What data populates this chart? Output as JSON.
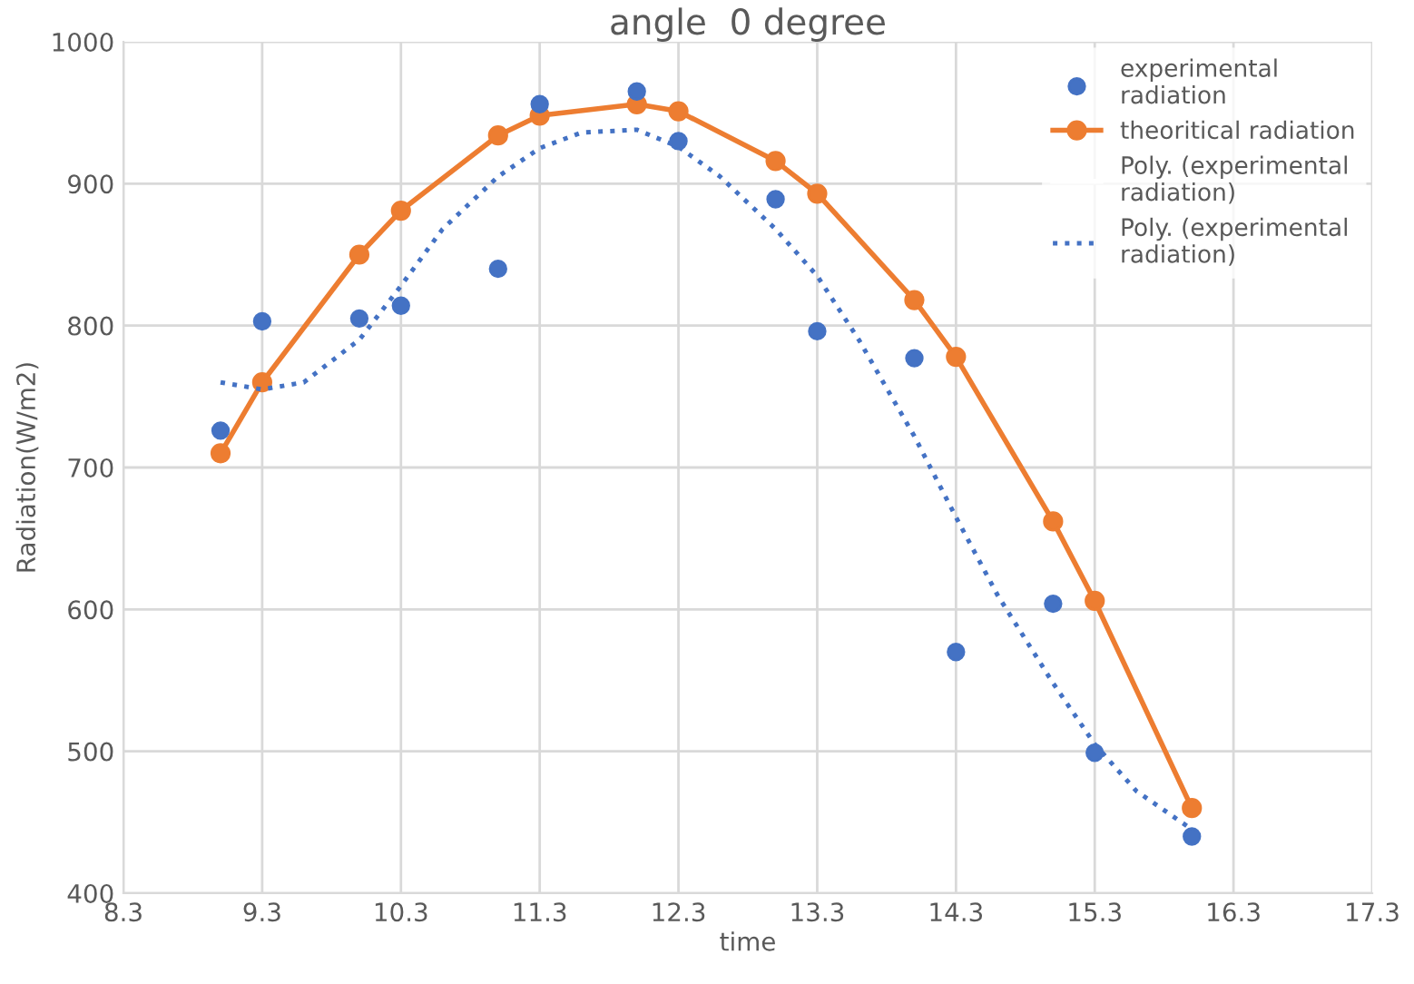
{
  "chart_data": {
    "type": "scatter",
    "title": "angle  0 degree",
    "xlabel": "time",
    "ylabel": "Radiation(W/m2)",
    "xlim": [
      8.3,
      17.3
    ],
    "xticks": [
      8.3,
      9.3,
      10.3,
      11.3,
      12.3,
      13.3,
      14.3,
      15.3,
      16.3,
      17.3
    ],
    "ylim": [
      400,
      1000
    ],
    "yticks": [
      400,
      500,
      600,
      700,
      800,
      900,
      1000
    ],
    "grid": true,
    "legend": "top right",
    "series": [
      {
        "name": "experimental radiation",
        "color": "#4472c4",
        "marker": "circle",
        "x": [
          9.0,
          9.3,
          10.0,
          10.3,
          11.0,
          11.3,
          12.0,
          12.3,
          13.0,
          13.3,
          14.0,
          14.3,
          15.0,
          15.3,
          16.0
        ],
        "values": [
          726,
          803,
          805,
          814,
          840,
          956,
          965,
          930,
          889,
          796,
          777,
          570,
          604,
          499,
          440
        ]
      },
      {
        "name": "theoritical radiation",
        "type": "line",
        "color": "#ed7d31",
        "marker": "circle",
        "line_style": "solid",
        "x": [
          9.0,
          9.3,
          10.0,
          10.3,
          11.0,
          11.3,
          12.0,
          12.3,
          13.0,
          13.3,
          14.0,
          14.3,
          15.0,
          15.3,
          16.0
        ],
        "values": [
          710,
          760,
          850,
          881,
          934,
          948,
          956,
          951,
          916,
          893,
          818,
          778,
          662,
          606,
          460
        ]
      },
      {
        "name": "Poly. (experimental radiation)",
        "type": "line",
        "color": "#ffffff",
        "marker": "none",
        "line_style": "solid"
      },
      {
        "name": "Poly. (experimental radiation)",
        "type": "line",
        "color": "#4472c4",
        "marker": "none",
        "line_style": "dotted",
        "x": [
          9.0,
          9.3,
          9.6,
          10.0,
          10.3,
          10.6,
          11.0,
          11.3,
          11.6,
          12.0,
          12.3,
          12.6,
          13.0,
          13.3,
          13.6,
          14.0,
          14.3,
          14.6,
          15.0,
          15.3,
          15.6,
          16.0
        ],
        "values": [
          760,
          755,
          760,
          790,
          828,
          868,
          905,
          925,
          936,
          938,
          926,
          905,
          868,
          835,
          790,
          722,
          665,
          610,
          548,
          505,
          472,
          445
        ]
      }
    ]
  }
}
